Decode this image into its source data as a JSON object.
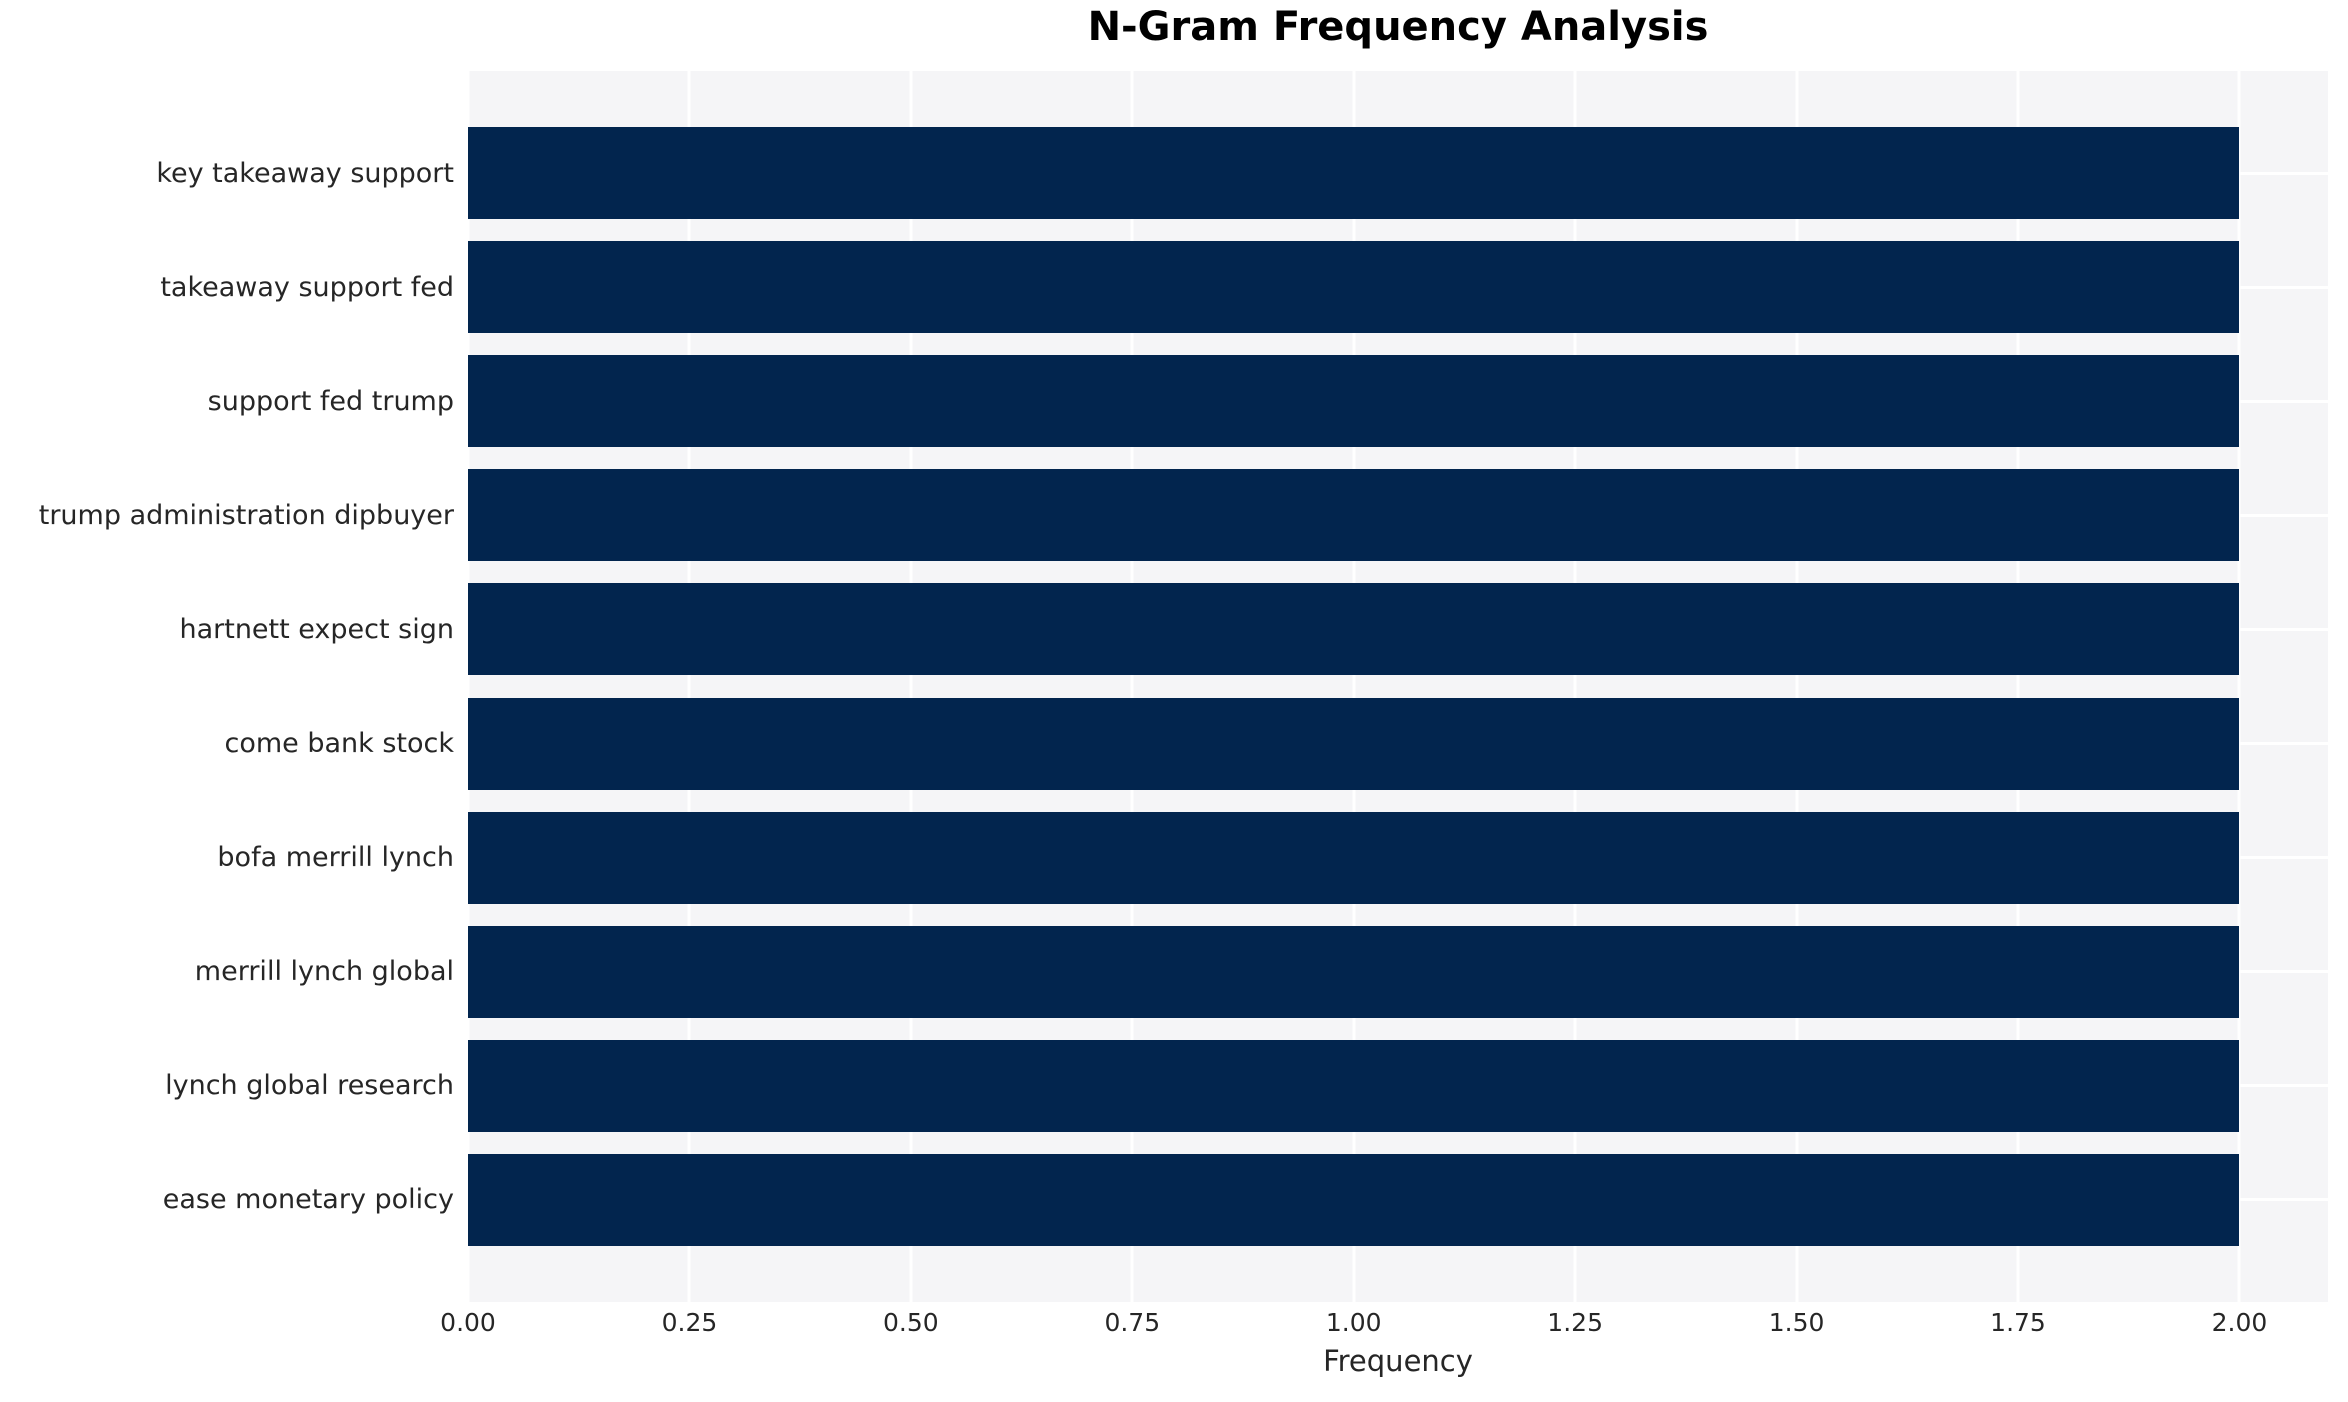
{
  "chart_data": {
    "type": "bar",
    "orientation": "horizontal",
    "title": "N-Gram Frequency Analysis",
    "xlabel": "Frequency",
    "ylabel": "",
    "categories": [
      "key takeaway support",
      "takeaway support fed",
      "support fed trump",
      "trump administration dipbuyer",
      "hartnett expect sign",
      "come bank stock",
      "bofa merrill lynch",
      "merrill lynch global",
      "lynch global research",
      "ease monetary policy"
    ],
    "values": [
      2,
      2,
      2,
      2,
      2,
      2,
      2,
      2,
      2,
      2
    ],
    "xlim": [
      0,
      2.1
    ],
    "xticks": [
      0,
      0.25,
      0.5,
      0.75,
      1.0,
      1.25,
      1.5,
      1.75,
      2.0
    ],
    "xtick_labels": [
      "0.00",
      "0.25",
      "0.50",
      "0.75",
      "1.00",
      "1.25",
      "1.50",
      "1.75",
      "2.00"
    ],
    "grid": "white gridlines on both axes over light-gray plot background",
    "legend": "none",
    "bar_height_fraction": 0.8,
    "colors": {
      "bar": "#02254e",
      "plot_background": "#f5f5f7",
      "figure_background": "#ffffff",
      "gridline": "#ffffff",
      "tick_text": "#262626",
      "title_text": "#000000"
    }
  }
}
